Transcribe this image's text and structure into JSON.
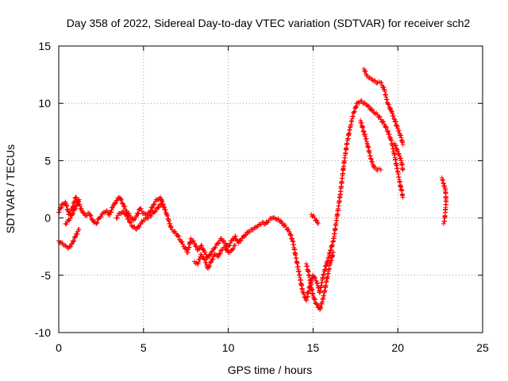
{
  "chart_data": {
    "type": "scatter",
    "title": "Day 358 of 2022, Sidereal Day-to-day VTEC variation (SDTVAR) for receiver sch2",
    "xlabel": "GPS time / hours",
    "ylabel": "SDTVAR / TECUs",
    "xlim": [
      0,
      25
    ],
    "ylim": [
      -10,
      15
    ],
    "xticks": [
      0,
      5,
      10,
      15,
      20,
      25
    ],
    "yticks": [
      -10,
      -5,
      0,
      5,
      10,
      15
    ],
    "grid": true,
    "marker": "+",
    "series": [
      {
        "name": "SDTVAR",
        "color": "#ff0000",
        "segments": [
          {
            "x": [
              0.0,
              0.2,
              0.4,
              0.6,
              0.8,
              1.0,
              1.2,
              1.4,
              1.6,
              1.8,
              2.0,
              2.2,
              2.4,
              2.6,
              2.8,
              3.0,
              3.2,
              3.4,
              3.6,
              3.8,
              4.0,
              4.2,
              4.4,
              4.6,
              4.8,
              5.0,
              5.2,
              5.4,
              5.6,
              5.8,
              6.0,
              6.2,
              6.4,
              6.6,
              6.8,
              7.0,
              7.2,
              7.4,
              7.6,
              7.8,
              8.0,
              8.2,
              8.4,
              8.6,
              8.8,
              9.0,
              9.2,
              9.4,
              9.6,
              9.8,
              10.0,
              10.2,
              10.4,
              10.6,
              10.8,
              11.0,
              11.2,
              11.4,
              11.6,
              11.8,
              12.0,
              12.2,
              12.4,
              12.6,
              12.8,
              13.0,
              13.2,
              13.4,
              13.6,
              13.8,
              14.0,
              14.2,
              14.4,
              14.6,
              14.8,
              15.0,
              15.2,
              15.4,
              15.6,
              15.8,
              16.0,
              16.2,
              16.4,
              16.6,
              16.8,
              17.0,
              17.2,
              17.4,
              17.6,
              17.8,
              18.0,
              18.2,
              18.4,
              18.6,
              18.8,
              19.0,
              19.2,
              19.4,
              19.6,
              19.8,
              20.0,
              20.2,
              20.3
            ],
            "y": [
              0.5,
              1.2,
              1.4,
              0.3,
              0.8,
              1.8,
              1.2,
              0.5,
              0.2,
              0.4,
              -0.2,
              -0.5,
              0.0,
              0.4,
              0.6,
              0.3,
              1.0,
              1.5,
              1.8,
              1.2,
              0.6,
              0.2,
              -0.2,
              0.2,
              0.8,
              0.4,
              0.2,
              0.6,
              1.2,
              1.6,
              1.8,
              1.0,
              0.2,
              -0.8,
              -1.2,
              -1.5,
              -2.0,
              -2.5,
              -3.0,
              -1.8,
              -2.2,
              -2.8,
              -2.4,
              -3.0,
              -3.5,
              -3.0,
              -2.6,
              -2.2,
              -1.8,
              -2.2,
              -2.5,
              -2.0,
              -1.6,
              -2.2,
              -1.8,
              -1.5,
              -1.2,
              -1.0,
              -0.8,
              -0.6,
              -0.4,
              -0.5,
              -0.2,
              0.0,
              -0.1,
              -0.2,
              -0.5,
              -0.8,
              -1.2,
              -2.0,
              -3.5,
              -5.0,
              -6.5,
              -7.2,
              -6.0,
              -5.0,
              -5.5,
              -6.5,
              -5.0,
              -4.0,
              -3.0,
              -2.0,
              0.0,
              2.0,
              4.5,
              6.5,
              8.0,
              9.2,
              10.0,
              10.2,
              10.0,
              9.8,
              9.5,
              9.2,
              9.0,
              8.6,
              8.2,
              7.6,
              6.8,
              5.5,
              4.0,
              2.5,
              1.8
            ]
          },
          {
            "x": [
              0.0,
              0.2,
              0.4,
              0.6,
              0.8,
              1.0,
              1.2
            ],
            "y": [
              -2.0,
              -2.2,
              -2.4,
              -2.6,
              -2.2,
              -1.6,
              -1.0
            ]
          },
          {
            "x": [
              0.4,
              0.6,
              0.8,
              1.0,
              1.2
            ],
            "y": [
              -0.5,
              -0.2,
              0.3,
              1.0,
              1.6
            ]
          },
          {
            "x": [
              3.4,
              3.6,
              3.8,
              4.0,
              4.2,
              4.4,
              4.6,
              4.8,
              5.0,
              5.2,
              5.4,
              5.6,
              5.8,
              6.0,
              6.2
            ],
            "y": [
              0.0,
              0.4,
              0.6,
              0.2,
              -0.4,
              -0.8,
              -1.0,
              -0.6,
              -0.2,
              0.0,
              0.2,
              0.5,
              0.8,
              1.2,
              1.0
            ]
          },
          {
            "x": [
              8.0,
              8.2,
              8.4,
              8.6,
              8.8,
              9.0,
              9.2,
              9.4,
              9.6,
              9.8,
              10.0,
              10.2,
              10.4
            ],
            "y": [
              -3.8,
              -4.0,
              -3.2,
              -3.6,
              -4.4,
              -3.8,
              -3.2,
              -3.4,
              -2.8,
              -2.6,
              -3.0,
              -2.8,
              -2.4
            ]
          },
          {
            "x": [
              14.6,
              14.8,
              15.0,
              15.2,
              15.4,
              15.6,
              15.8,
              16.0,
              16.2
            ],
            "y": [
              -4.0,
              -5.2,
              -6.8,
              -7.5,
              -8.0,
              -7.0,
              -5.5,
              -4.0,
              -3.0
            ]
          },
          {
            "x": [
              14.9,
              15.1,
              15.3
            ],
            "y": [
              0.3,
              0.0,
              -0.5
            ]
          },
          {
            "x": [
              17.8,
              18.0,
              18.2,
              18.4,
              18.6,
              18.8,
              19.0
            ],
            "y": [
              8.5,
              7.5,
              6.5,
              5.2,
              4.4,
              4.2,
              4.2
            ]
          },
          {
            "x": [
              18.0,
              18.2,
              18.4,
              18.6,
              18.8,
              19.0,
              19.2,
              19.4,
              19.6,
              19.8,
              20.0,
              20.2,
              20.3
            ],
            "y": [
              13.0,
              12.4,
              12.2,
              12.0,
              11.8,
              11.8,
              11.2,
              10.0,
              9.4,
              8.6,
              7.8,
              7.0,
              6.4
            ]
          },
          {
            "x": [
              19.8,
              20.0,
              20.2,
              20.3
            ],
            "y": [
              6.5,
              5.8,
              5.0,
              4.2
            ]
          },
          {
            "x": [
              22.6,
              22.7,
              22.8,
              22.85,
              22.8,
              22.75,
              22.7
            ],
            "y": [
              3.5,
              3.0,
              2.5,
              1.5,
              0.5,
              -0.3,
              -0.5
            ]
          }
        ]
      }
    ]
  }
}
